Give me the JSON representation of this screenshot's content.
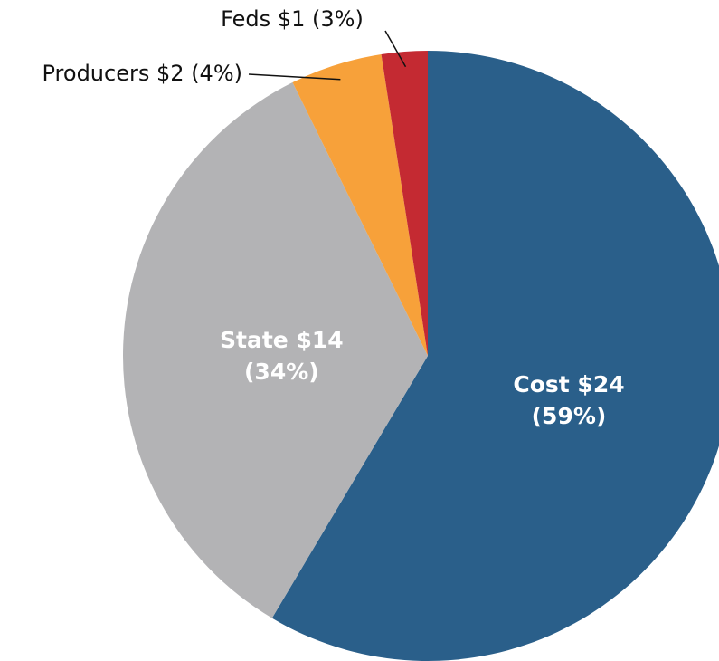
{
  "chart_data": {
    "type": "pie",
    "categories": [
      "Cost",
      "State",
      "Producers",
      "Feds"
    ],
    "values": [
      24,
      14,
      2,
      1
    ],
    "value_labels": [
      "$24",
      "$14",
      "$2",
      "$1"
    ],
    "percents": [
      59,
      34,
      4,
      3
    ],
    "percent_labels": [
      "(59%)",
      "(34%)",
      "(4%)",
      "(3%)"
    ],
    "colors": [
      "#2a5f8a",
      "#b3b3b5",
      "#f7a13a",
      "#c42a32"
    ]
  }
}
